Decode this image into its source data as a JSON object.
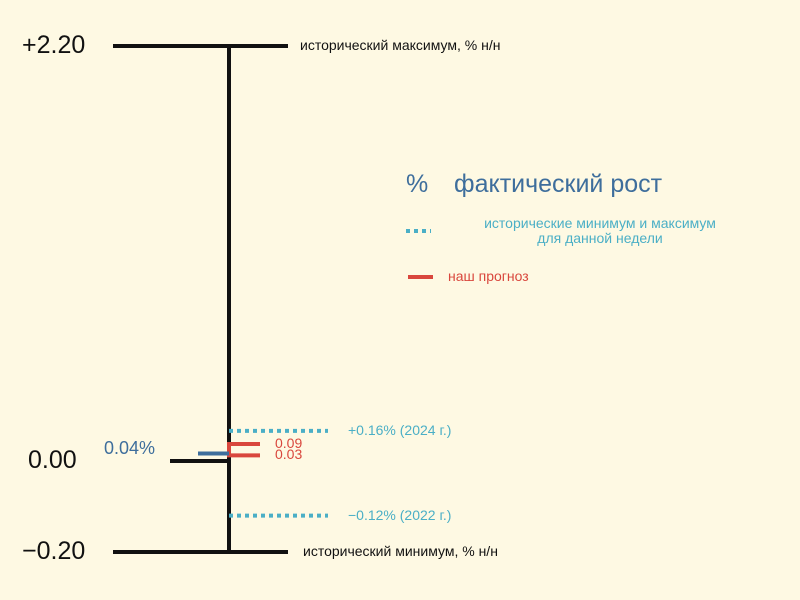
{
  "colors": {
    "background": "#FEF9E3",
    "axis": "#111111",
    "actual": "#3E6E9C",
    "historical": "#4BAFC6",
    "forecast": "#D9473D"
  },
  "chart_data": {
    "type": "range-scale",
    "y_ticks": [
      {
        "value": 2.2,
        "label": "+2.20"
      },
      {
        "value": 0.0,
        "label": "0.00"
      },
      {
        "value": -0.2,
        "label": "−0.20"
      }
    ],
    "historical_max_label": "исторический максимум, % н/н",
    "historical_min_label": "исторический минимум, % н/н",
    "actual": {
      "value": 0.04,
      "label": "0.04%"
    },
    "week_range": {
      "max": {
        "value": 0.16,
        "label": "+0.16% (2024 г.)"
      },
      "min": {
        "value": -0.12,
        "label": "−0.12% (2022 г.)"
      }
    },
    "forecast": {
      "high": {
        "value": 0.09,
        "label": "0.09"
      },
      "low": {
        "value": 0.03,
        "label": "0.03"
      }
    },
    "legend": {
      "actual_symbol": "%",
      "actual_label": "фактический рост",
      "historical_label_line1": "исторические минимум и максимум",
      "historical_label_line2": "для данной недели",
      "forecast_label": "наш прогноз"
    }
  }
}
